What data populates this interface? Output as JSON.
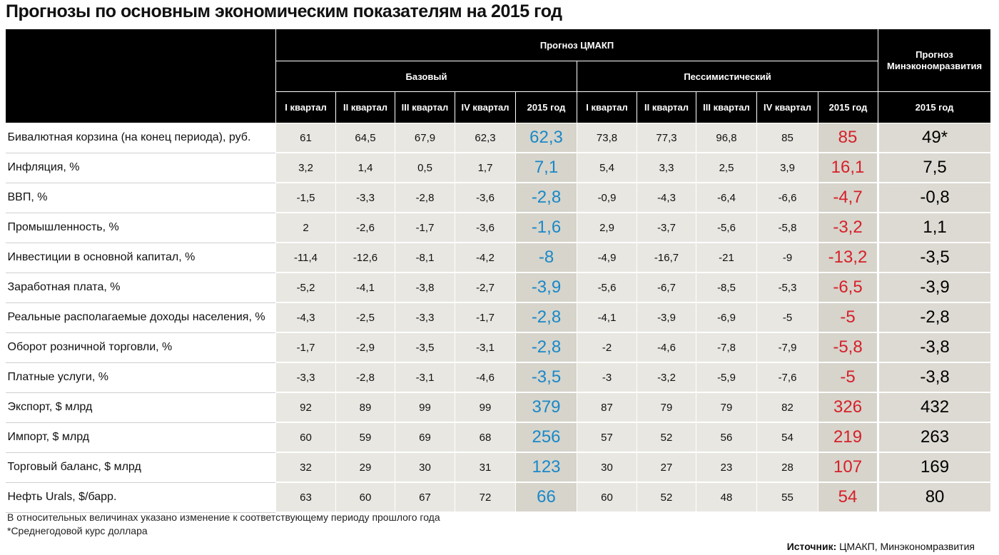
{
  "header": {
    "title": "Прогнозы по основным экономическим показателям на 2015 год"
  },
  "table": {
    "source_header": "Прогноз ЦМАКП",
    "minec_header": "Прогноз Минэкономразвития",
    "scenarios": [
      "Базовый",
      "Пессимистический"
    ],
    "columns": [
      "I квартал",
      "II квартал",
      "III квартал",
      "IV квартал",
      "2015 год",
      "I квартал",
      "II квартал",
      "III квартал",
      "IV квартал",
      "2015 год",
      "2015 год"
    ],
    "rows": [
      {
        "label": "Бивалютная корзина (на конец периода), руб.",
        "values": [
          "61",
          "64,5",
          "67,9",
          "62,3",
          "62,3",
          "73,8",
          "77,3",
          "96,8",
          "85",
          "85",
          "49*"
        ]
      },
      {
        "label": "Инфляция, %",
        "values": [
          "3,2",
          "1,4",
          "0,5",
          "1,7",
          "7,1",
          "5,4",
          "3,3",
          "2,5",
          "3,9",
          "16,1",
          "7,5"
        ]
      },
      {
        "label": "ВВП, %",
        "values": [
          "-1,5",
          "-3,3",
          "-2,8",
          "-3,6",
          "-2,8",
          "-0,9",
          "-4,3",
          "-6,4",
          "-6,6",
          "-4,7",
          "-0,8"
        ]
      },
      {
        "label": "Промышленность, %",
        "values": [
          "2",
          "-2,6",
          "-1,7",
          "-3,6",
          "-1,6",
          "2,9",
          "-3,7",
          "-5,6",
          "-5,8",
          "-3,2",
          "1,1"
        ]
      },
      {
        "label": "Инвестиции в основной капитал, %",
        "values": [
          "-11,4",
          "-12,6",
          "-8,1",
          "-4,2",
          "-8",
          "-4,9",
          "-16,7",
          "-21",
          "-9",
          "-13,2",
          "-3,5"
        ]
      },
      {
        "label": "Заработная плата, %",
        "values": [
          "-5,2",
          "-4,1",
          "-3,8",
          "-2,7",
          "-3,9",
          "-5,6",
          "-6,7",
          "-8,5",
          "-5,3",
          "-6,5",
          "-3,9"
        ]
      },
      {
        "label": "Реальные располагаемые доходы населения, %",
        "values": [
          "-4,3",
          "-2,5",
          "-3,3",
          "-1,7",
          "-2,8",
          "-4,1",
          "-3,9",
          "-6,9",
          "-5",
          "-5",
          "-2,8"
        ]
      },
      {
        "label": "Оборот розничной торговли, %",
        "values": [
          "-1,7",
          "-2,9",
          "-3,5",
          "-3,1",
          "-2,8",
          "-2",
          "-4,6",
          "-7,8",
          "-7,9",
          "-5,8",
          "-3,8"
        ]
      },
      {
        "label": "Платные услуги, %",
        "values": [
          "-3,3",
          "-2,8",
          "-3,1",
          "-4,6",
          "-3,5",
          "-3",
          "-3,2",
          "-5,9",
          "-7,6",
          "-5",
          "-3,8"
        ]
      },
      {
        "label": "Экспорт, $ млрд",
        "values": [
          "92",
          "89",
          "99",
          "99",
          "379",
          "87",
          "79",
          "79",
          "82",
          "326",
          "432"
        ]
      },
      {
        "label": "Импорт, $ млрд",
        "values": [
          "60",
          "59",
          "69",
          "68",
          "256",
          "57",
          "52",
          "56",
          "54",
          "219",
          "263"
        ]
      },
      {
        "label": "Торговый баланс, $ млрд",
        "values": [
          "32",
          "29",
          "30",
          "31",
          "123",
          "30",
          "27",
          "23",
          "28",
          "107",
          "169"
        ]
      },
      {
        "label": "Нефть Urals, $/барр.",
        "values": [
          "63",
          "60",
          "67",
          "72",
          "66",
          "60",
          "52",
          "48",
          "55",
          "54",
          "80"
        ]
      }
    ]
  },
  "footnotes": [
    "В относительных величинах указано изменение к соответствующему периоду прошлого года",
    "*Среднегодовой курс доллара"
  ],
  "source": {
    "label": "Источник:",
    "text": "ЦМАКП, Минэкономразвития"
  }
}
